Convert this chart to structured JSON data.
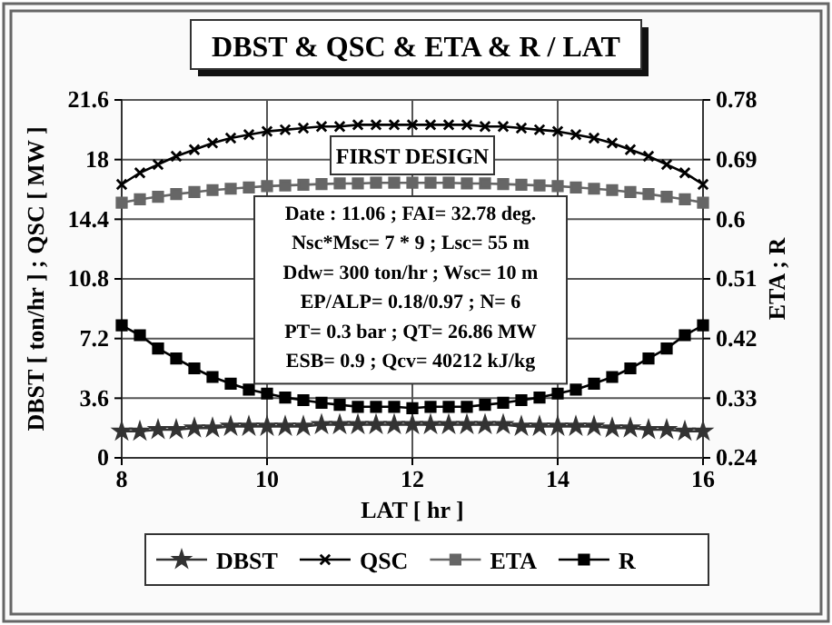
{
  "chart_data": {
    "type": "line",
    "title": "DBST & QSC & ETA & R / LAT",
    "xlabel": "LAT [ hr ]",
    "ylabel": "DBST [ ton/hr ] ; QSC [ MW ]",
    "y2label": "ETA ; R",
    "x": [
      8,
      8.25,
      8.5,
      8.75,
      9,
      9.25,
      9.5,
      9.75,
      10,
      10.25,
      10.5,
      10.75,
      11,
      11.25,
      11.5,
      11.75,
      12,
      12.25,
      12.5,
      12.75,
      13,
      13.25,
      13.5,
      13.75,
      14,
      14.25,
      14.5,
      14.75,
      15,
      15.25,
      15.5,
      15.75,
      16
    ],
    "xlim": [
      8,
      16
    ],
    "xticks": [
      8,
      10,
      12,
      14,
      16
    ],
    "ylim": [
      0,
      21.6
    ],
    "yticks": [
      0,
      3.6,
      7.2,
      10.8,
      14.4,
      18,
      21.6
    ],
    "y2lim": [
      0.24,
      0.78
    ],
    "y2ticks": [
      0.24,
      0.33,
      0.42,
      0.51,
      {
        "value": 0.6,
        "label": "0.6"
      },
      0.69,
      0.78
    ],
    "grid": true,
    "legend": "bottom",
    "annotations": [
      "FIRST DESIGN",
      "Date : 11.06  ;  FAI= 32.78 deg.",
      "Nsc*Msc= 7 * 9 ; Lsc= 55 m",
      "Ddw= 300 ton/hr ; Wsc= 10 m",
      "EP/ALP= 0.18/0.97 ; N= 6",
      "PT= 0.3 bar  ; QT= 26.86 MW",
      "ESB= 0.9 ; Qcv= 40212 kJ/kg"
    ],
    "series": [
      {
        "name": "DBST",
        "color": "#333333",
        "marker": "star",
        "values": [
          1.6,
          1.6,
          1.7,
          1.7,
          1.8,
          1.8,
          1.9,
          1.9,
          1.9,
          1.9,
          1.9,
          2.0,
          2.0,
          2.0,
          2.0,
          2.0,
          2.0,
          2.0,
          2.0,
          2.0,
          2.0,
          2.0,
          1.9,
          1.9,
          1.9,
          1.9,
          1.9,
          1.8,
          1.8,
          1.7,
          1.7,
          1.6,
          1.6
        ]
      },
      {
        "name": "QSC",
        "color": "#000000",
        "marker": "cross",
        "values": [
          16.5,
          17.2,
          17.7,
          18.2,
          18.6,
          19.0,
          19.3,
          19.5,
          19.7,
          19.8,
          19.9,
          20.0,
          20.0,
          20.1,
          20.1,
          20.1,
          20.1,
          20.1,
          20.1,
          20.1,
          20.0,
          20.0,
          19.9,
          19.8,
          19.7,
          19.5,
          19.3,
          19.0,
          18.6,
          18.2,
          17.7,
          17.2,
          16.5
        ]
      },
      {
        "name": "ETA",
        "color": "#666666",
        "marker": "square",
        "axis": "y2",
        "values": [
          0.625,
          0.63,
          0.634,
          0.638,
          0.641,
          0.644,
          0.646,
          0.648,
          0.65,
          0.651,
          0.652,
          0.653,
          0.654,
          0.654,
          0.655,
          0.655,
          0.655,
          0.655,
          0.655,
          0.654,
          0.654,
          0.653,
          0.652,
          0.651,
          0.65,
          0.648,
          0.646,
          0.644,
          0.641,
          0.638,
          0.634,
          0.63,
          0.625
        ]
      },
      {
        "name": "R",
        "color": "#000000",
        "marker": "square",
        "axis": "y2",
        "values": [
          0.44,
          0.425,
          0.405,
          0.39,
          0.375,
          0.362,
          0.352,
          0.343,
          0.337,
          0.331,
          0.327,
          0.323,
          0.32,
          0.317,
          0.317,
          0.317,
          0.315,
          0.317,
          0.317,
          0.317,
          0.32,
          0.323,
          0.327,
          0.331,
          0.337,
          0.343,
          0.352,
          0.362,
          0.375,
          0.39,
          0.405,
          0.425,
          0.44
        ]
      }
    ]
  }
}
